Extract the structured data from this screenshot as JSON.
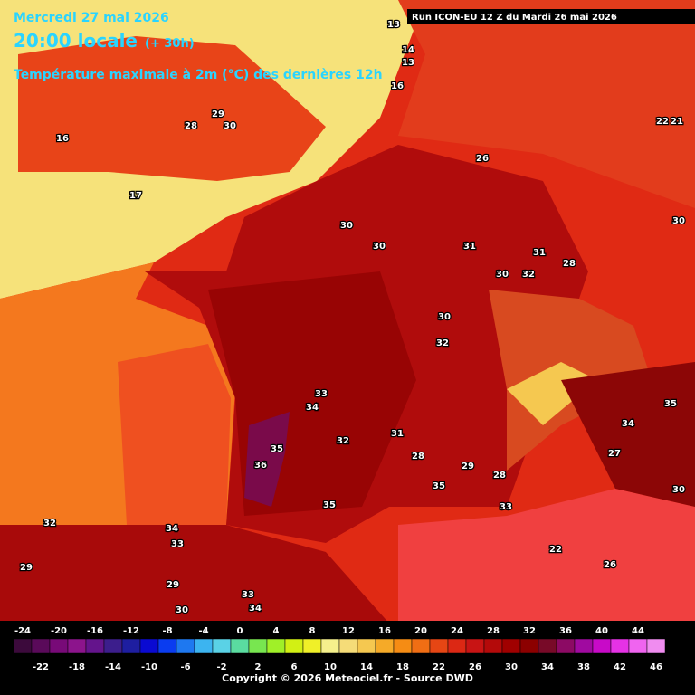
{
  "header": {
    "date": "Mercredi 27 mai 2026",
    "time": "20:00 locale",
    "lead": "(+ 30h)",
    "title": "Température maximale à 2m (°C) des dernières 12h",
    "run": "Run ICON-EU 12 Z du Mardi 26 mai 2026"
  },
  "map_labels": [
    30,
    30,
    31,
    31,
    28,
    30,
    32,
    30,
    32,
    33,
    34,
    35,
    36,
    32,
    31,
    28,
    35,
    35,
    29,
    28,
    33,
    26,
    30,
    35,
    34,
    27,
    30,
    22,
    22,
    21,
    29,
    30,
    28,
    16,
    17,
    13,
    14,
    13,
    16,
    34,
    33,
    30,
    33,
    34,
    29,
    32,
    29,
    26
  ],
  "scale": {
    "top_labels": [
      -24,
      -20,
      -16,
      -12,
      -8,
      -4,
      0,
      4,
      8,
      12,
      16,
      20,
      24,
      28,
      32,
      36,
      40,
      44
    ],
    "bottom_labels": [
      -22,
      -18,
      -14,
      -10,
      -6,
      -2,
      2,
      6,
      10,
      14,
      18,
      22,
      26,
      30,
      34,
      38,
      42,
      46
    ],
    "colors": [
      "#3c0a3c",
      "#5a0a5a",
      "#780a78",
      "#8c148c",
      "#64148c",
      "#3c1e8c",
      "#1e1ea0",
      "#0a0ad2",
      "#0a3cf0",
      "#1e78f0",
      "#3cb4f0",
      "#5ad2e6",
      "#5adca0",
      "#78e650",
      "#a0f028",
      "#d2f014",
      "#f0f028",
      "#f5f08c",
      "#f5dc78",
      "#f5c850",
      "#f5aa28",
      "#f58c14",
      "#f06e14",
      "#e64614",
      "#dc2814",
      "#c81414",
      "#b40a0a",
      "#a00000",
      "#8c0000",
      "#780a28",
      "#8c0a64",
      "#a00aa0",
      "#c80ac8",
      "#e632e6",
      "#f064f0",
      "#f08cf0"
    ]
  },
  "footer": "Copyright © 2026 Meteociel.fr - Source DWD"
}
